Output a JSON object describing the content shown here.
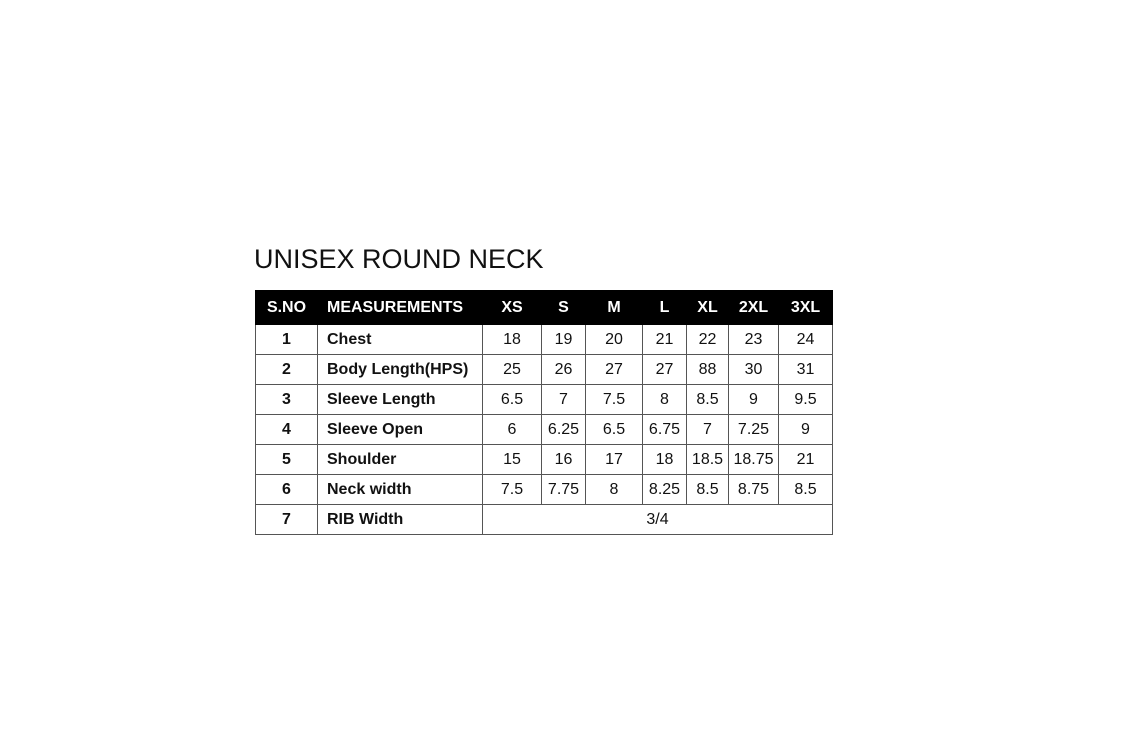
{
  "title": "UNISEX ROUND NECK",
  "table": {
    "headers": [
      "S.NO",
      "MEASUREMENTS",
      "XS",
      "S",
      "M",
      "L",
      "XL",
      "2XL",
      "3XL"
    ],
    "rows": [
      {
        "sno": "1",
        "name": "Chest",
        "values": [
          "18",
          "19",
          "20",
          "21",
          "22",
          "23",
          "24"
        ]
      },
      {
        "sno": "2",
        "name": "Body Length(HPS)",
        "values": [
          "25",
          "26",
          "27",
          "27",
          "88",
          "30",
          "31"
        ]
      },
      {
        "sno": "3",
        "name": "Sleeve Length",
        "values": [
          "6.5",
          "7",
          "7.5",
          "8",
          "8.5",
          "9",
          "9.5"
        ]
      },
      {
        "sno": "4",
        "name": "Sleeve Open",
        "values": [
          "6",
          "6.25",
          "6.5",
          "6.75",
          "7",
          "7.25",
          "9"
        ]
      },
      {
        "sno": "5",
        "name": "Shoulder",
        "values": [
          "15",
          "16",
          "17",
          "18",
          "18.5",
          "18.75",
          "21"
        ]
      },
      {
        "sno": "6",
        "name": "Neck width",
        "values": [
          "7.5",
          "7.75",
          "8",
          "8.25",
          "8.5",
          "8.75",
          "8.5"
        ]
      }
    ],
    "last_row": {
      "sno": "7",
      "name": "RIB Width",
      "value": "3/4"
    }
  }
}
